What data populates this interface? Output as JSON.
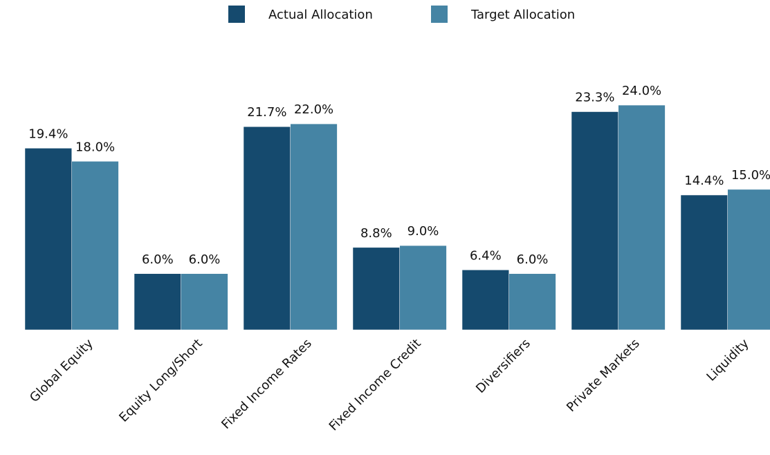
{
  "chart_data": {
    "type": "bar",
    "categories": [
      "Global Equity",
      "Equity Long/Short",
      "Fixed Income Rates",
      "Fixed Income Credit",
      "Diversifiers",
      "Private Markets",
      "Liquidity"
    ],
    "series": [
      {
        "name": "Actual Allocation",
        "color": "#154a6e",
        "values": [
          19.4,
          6.0,
          21.7,
          8.8,
          6.4,
          23.3,
          14.4
        ],
        "value_labels": [
          "19.4%",
          "6.0%",
          "21.7%",
          "8.8%",
          "6.4%",
          "23.3%",
          "14.4%"
        ]
      },
      {
        "name": "Target Allocation",
        "color": "#4584a4",
        "values": [
          18.0,
          6.0,
          22.0,
          9.0,
          6.0,
          24.0,
          15.0
        ],
        "value_labels": [
          "18.0%",
          "6.0%",
          "22.0%",
          "9.0%",
          "6.0%",
          "24.0%",
          "15.0%"
        ]
      }
    ],
    "ylim": [
      0,
      25
    ],
    "legend": "top"
  }
}
